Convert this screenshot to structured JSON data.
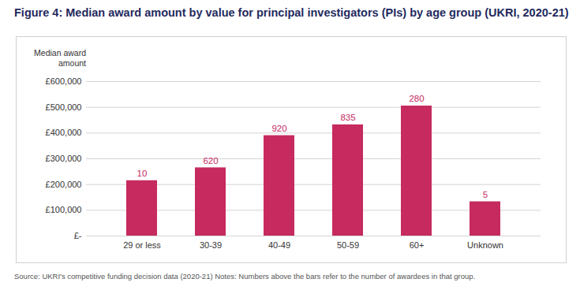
{
  "chart_data": {
    "type": "bar",
    "title": "Figure 4: Median award amount by value for principal investigators (PIs) by age group (UKRI, 2020-21)",
    "y_label": "Median award amount",
    "categories": [
      "29 or less",
      "30-39",
      "40-49",
      "50-59",
      "60+",
      "Unknown"
    ],
    "values": [
      215000,
      265000,
      390000,
      432000,
      505000,
      133000
    ],
    "awardees": [
      10,
      620,
      920,
      835,
      280,
      5
    ],
    "color": "#c62a5f",
    "ylim": [
      0,
      600000
    ],
    "yticks": [
      {
        "value": 0,
        "label": "£-"
      },
      {
        "value": 100000,
        "label": "£100,000"
      },
      {
        "value": 200000,
        "label": "£200,000"
      },
      {
        "value": 300000,
        "label": "£300,000"
      },
      {
        "value": 400000,
        "label": "£400,000"
      },
      {
        "value": 500000,
        "label": "£500,000"
      },
      {
        "value": 600000,
        "label": "£600,000"
      }
    ],
    "grid": true,
    "caption": "Source: UKRI's competitive funding decision data (2020-21) Notes: Numbers above the bars refer to the number of awardees in that group."
  }
}
